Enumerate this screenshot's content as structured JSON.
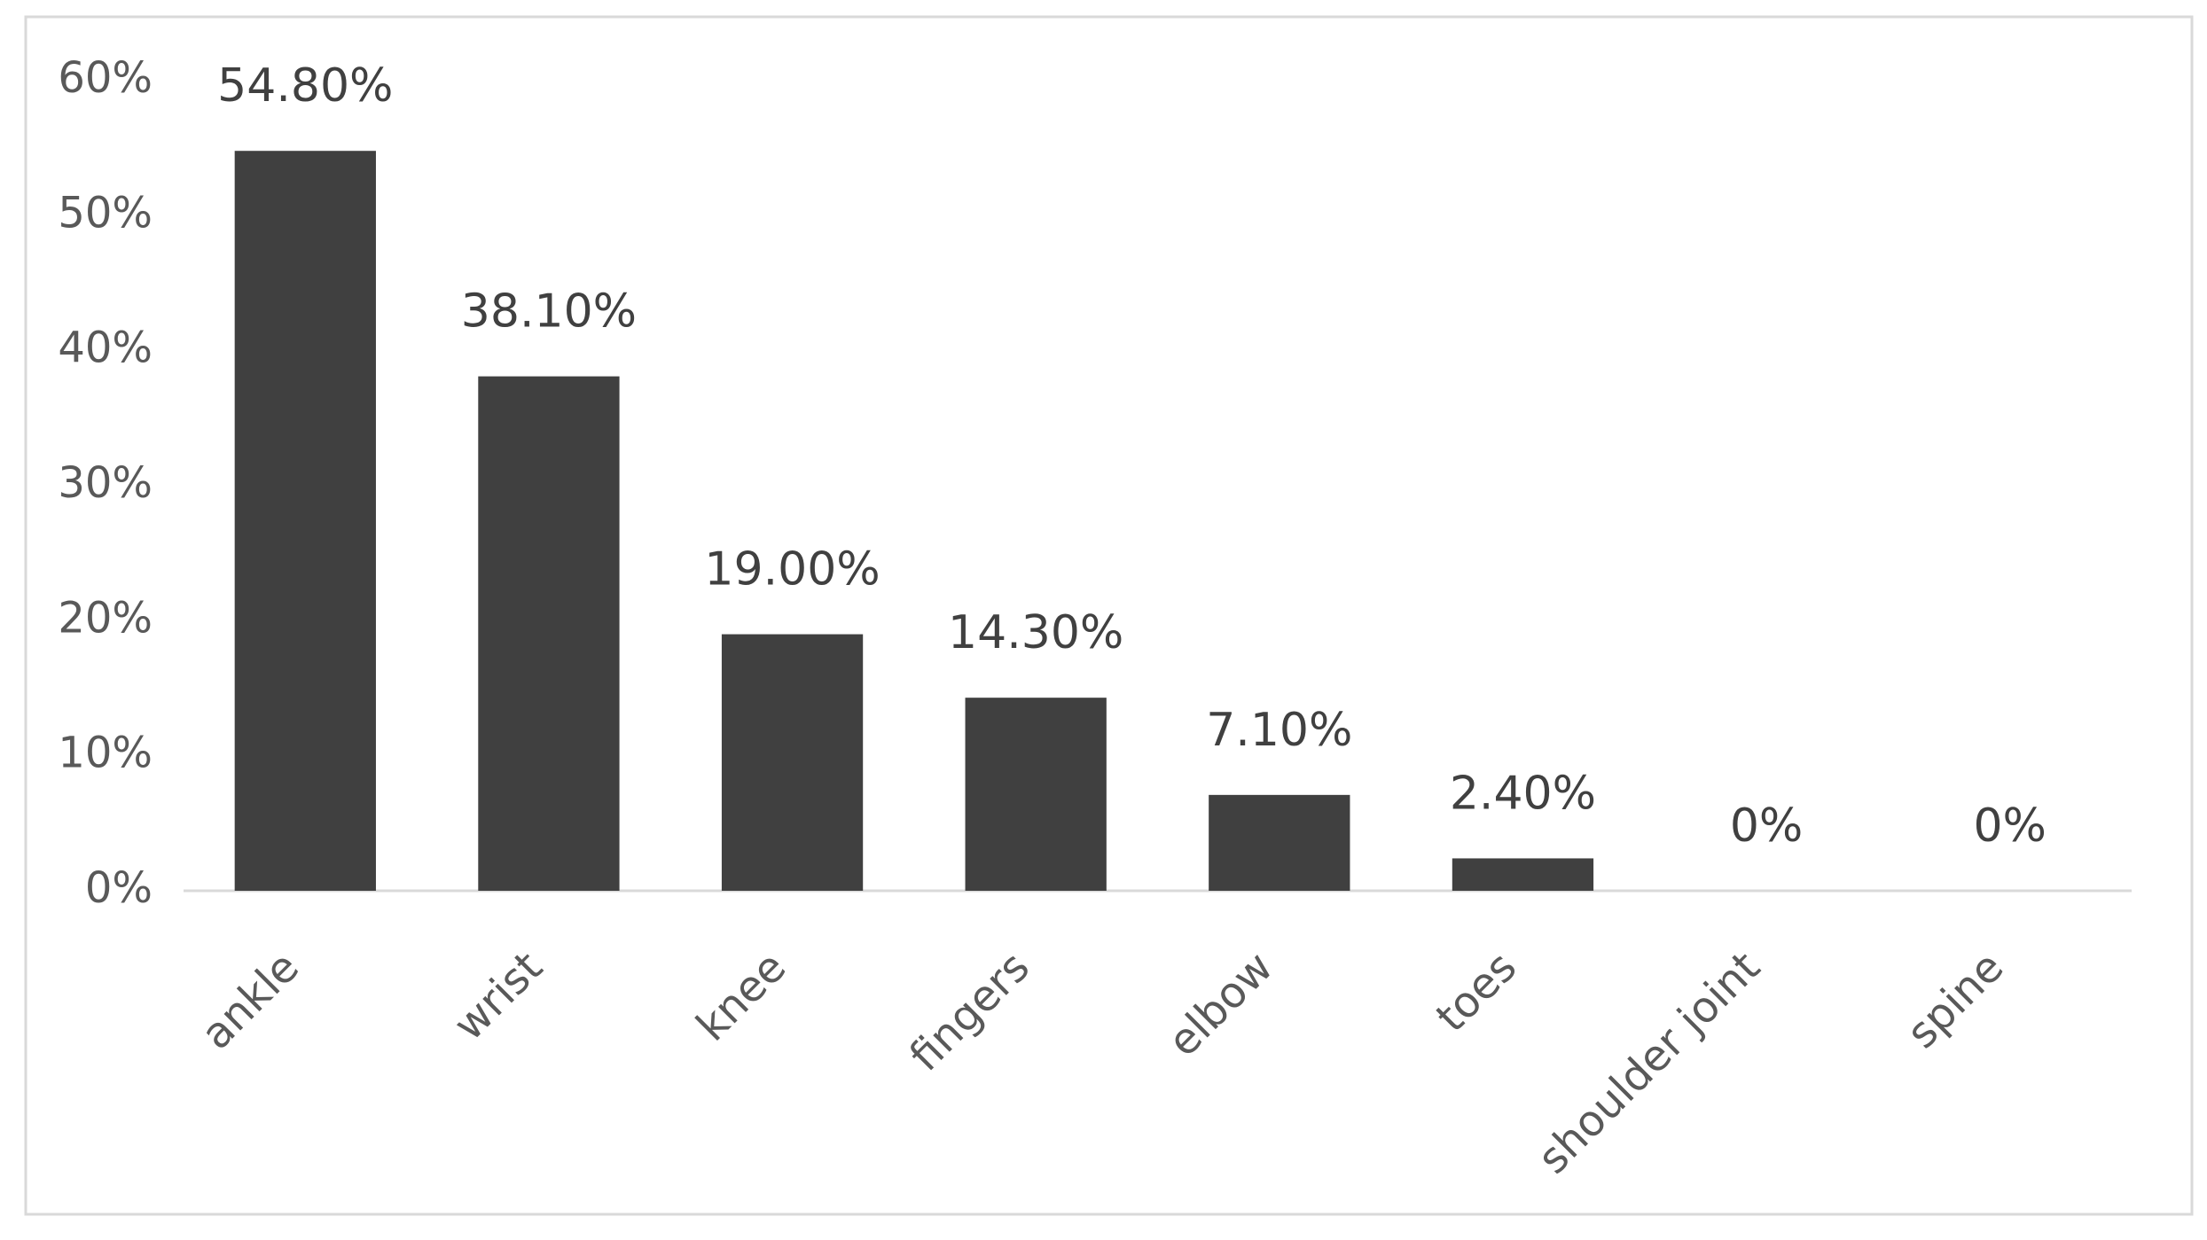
{
  "chart_data": {
    "type": "bar",
    "categories": [
      "ankle",
      "wrist",
      "knee",
      "fingers",
      "elbow",
      "toes",
      "shoulder joint",
      "spine"
    ],
    "values": [
      54.8,
      38.1,
      19.0,
      14.3,
      7.1,
      2.4,
      0,
      0
    ],
    "value_labels": [
      "54.80%",
      "38.10%",
      "19.00%",
      "14.30%",
      "7.10%",
      "2.40%",
      "0%",
      "0%"
    ],
    "color": "#404040",
    "ylim": [
      0,
      60
    ],
    "yticks": [
      {
        "value": 0,
        "label": "0%"
      },
      {
        "value": 10,
        "label": "10%"
      },
      {
        "value": 20,
        "label": "20%"
      },
      {
        "value": 30,
        "label": "30%"
      },
      {
        "value": 40,
        "label": "40%"
      },
      {
        "value": 50,
        "label": "50%"
      },
      {
        "value": 60,
        "label": "60%"
      }
    ],
    "grid": false
  }
}
